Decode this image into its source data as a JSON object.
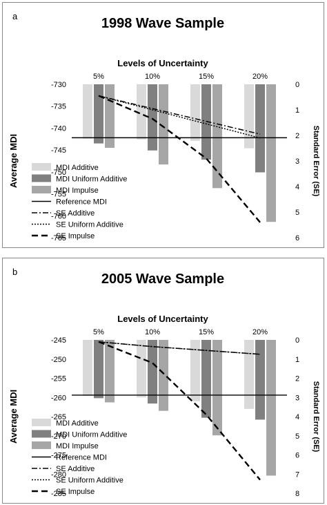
{
  "chart_data": [
    {
      "panel_label": "a",
      "type": "bar",
      "title": "1998 Wave Sample",
      "xlabel": "Levels of Uncertainty",
      "ylabel": "Average MDI",
      "y2label": "Standard Error (SE)",
      "categories": [
        "5%",
        "10%",
        "15%",
        "20%"
      ],
      "ylim": [
        -765,
        -730
      ],
      "yticks": [
        -730,
        -735,
        -740,
        -745,
        -750,
        -755,
        -760,
        -765
      ],
      "y2lim": [
        0,
        6
      ],
      "y2ticks": [
        0,
        1,
        2,
        3,
        4,
        5,
        6
      ],
      "reference_mdi": -742.2,
      "bar_series": [
        {
          "name": "MDI Additive",
          "color": "#d9d9d9",
          "values": [
            -742.4,
            -742.6,
            -742.9,
            -744.6
          ]
        },
        {
          "name": "MDI Uniform Additive",
          "color": "#808080",
          "values": [
            -743.5,
            -745.1,
            -747.2,
            -750.1
          ]
        },
        {
          "name": "MDI Impulse",
          "color": "#a6a6a6",
          "values": [
            -744.5,
            -748.3,
            -753.7,
            -761.4
          ]
        }
      ],
      "line_series": [
        {
          "name": "SE Additive",
          "style": "dashdot",
          "values": [
            0.45,
            0.95,
            1.45,
            1.95
          ]
        },
        {
          "name": "SE Uniform Additive",
          "style": "dotted",
          "values": [
            0.45,
            1.0,
            1.55,
            2.1
          ]
        },
        {
          "name": "SE Impulse",
          "style": "dashed",
          "values": [
            0.45,
            1.35,
            2.9,
            5.4
          ]
        }
      ],
      "legend": [
        "MDI Additive",
        "MDI Uniform Additive",
        "MDI Impulse",
        "Reference MDI",
        "SE Additive",
        "SE Uniform Additive",
        "SE Impulse"
      ],
      "legend_position": "bottom-left"
    },
    {
      "panel_label": "b",
      "type": "bar",
      "title": "2005 Wave Sample",
      "xlabel": "Levels of Uncertainty",
      "ylabel": "Average MDI",
      "y2label": "Standard Error (SE)",
      "categories": [
        "5%",
        "10%",
        "15%",
        "20%"
      ],
      "ylim": [
        -285,
        -245
      ],
      "yticks": [
        -245,
        -250,
        -255,
        -260,
        -265,
        -270,
        -275,
        -280,
        -285
      ],
      "y2lim": [
        0,
        8
      ],
      "y2ticks": [
        0,
        1,
        2,
        3,
        4,
        5,
        6,
        7,
        8
      ],
      "reference_mdi": -259.4,
      "bar_series": [
        {
          "name": "MDI Additive",
          "color": "#d9d9d9",
          "values": [
            -259.6,
            -260.0,
            -261.0,
            -263.0
          ]
        },
        {
          "name": "MDI Uniform Additive",
          "color": "#808080",
          "values": [
            -260.2,
            -261.6,
            -265.3,
            -265.8
          ]
        },
        {
          "name": "MDI Impulse",
          "color": "#a6a6a6",
          "values": [
            -261.3,
            -263.5,
            -269.9,
            -280.4
          ]
        }
      ],
      "line_series": [
        {
          "name": "SE Additive",
          "style": "dashdot",
          "values": [
            0.1,
            0.35,
            0.55,
            0.75
          ]
        },
        {
          "name": "SE Uniform Additive",
          "style": "dotted",
          "values": [
            0.1,
            0.35,
            0.55,
            0.75
          ]
        },
        {
          "name": "SE Impulse",
          "style": "dashed",
          "values": [
            0.1,
            1.2,
            3.9,
            7.3
          ]
        }
      ],
      "legend": [
        "MDI Additive",
        "MDI Uniform Additive",
        "MDI Impulse",
        "Reference MDI",
        "SE Additive",
        "SE Uniform Additive",
        "SE Impulse"
      ],
      "legend_position": "bottom-left"
    }
  ]
}
